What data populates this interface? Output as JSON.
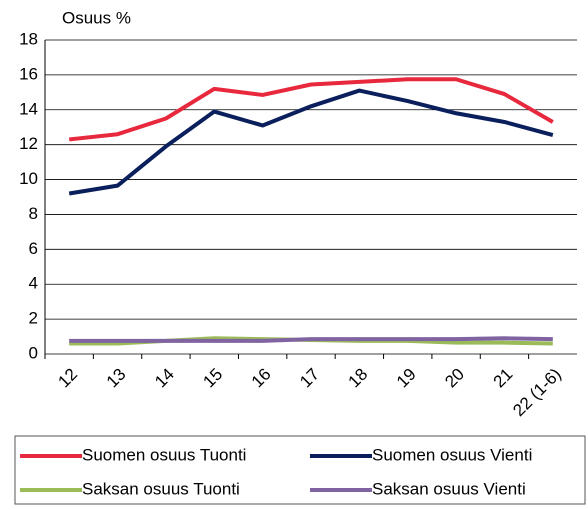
{
  "chart_data": {
    "type": "line",
    "y_label": "Osuus %",
    "categories": [
      "12",
      "13",
      "14",
      "15",
      "16",
      "17",
      "18",
      "19",
      "20",
      "21",
      "22 (1-6)"
    ],
    "series": [
      {
        "name": "Suomen osuus Tuonti",
        "color": "#e8283c",
        "values": [
          12.3,
          12.6,
          13.5,
          15.2,
          14.85,
          15.45,
          15.6,
          15.75,
          15.75,
          14.9,
          13.3
        ]
      },
      {
        "name": "Suomen osuus Vienti",
        "color": "#0a1f5c",
        "values": [
          9.2,
          9.65,
          11.9,
          13.9,
          13.1,
          14.2,
          15.1,
          14.5,
          13.8,
          13.3,
          12.55
        ]
      },
      {
        "name": "Saksan osuus Tuonti",
        "color": "#9bbb59",
        "values": [
          0.6,
          0.6,
          0.75,
          0.9,
          0.85,
          0.8,
          0.75,
          0.75,
          0.65,
          0.65,
          0.6
        ]
      },
      {
        "name": "Saksan osuus Vienti",
        "color": "#8064a2",
        "values": [
          0.75,
          0.75,
          0.75,
          0.75,
          0.75,
          0.85,
          0.85,
          0.85,
          0.85,
          0.9,
          0.85
        ]
      }
    ],
    "ylim": [
      0,
      18
    ],
    "yticks": [
      0,
      2,
      4,
      6,
      8,
      10,
      12,
      14,
      16,
      18
    ],
    "grid": true
  }
}
